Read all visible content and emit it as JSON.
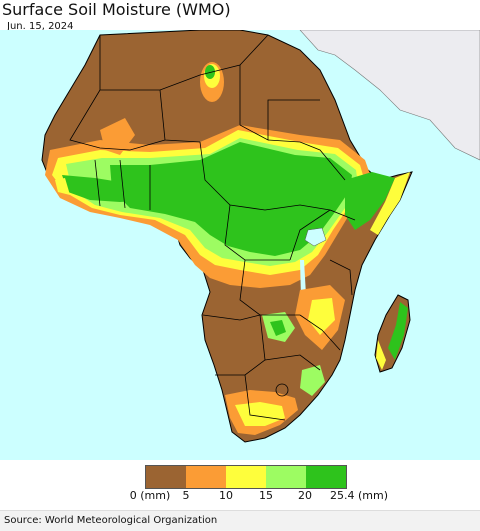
{
  "title": "Surface Soil Moisture (WMO)",
  "date": "Jun. 15, 2024",
  "source": "Source: World Meteorological Organization",
  "legend": {
    "labels": [
      "0 (mm)",
      "5",
      "10",
      "15",
      "20",
      "25.4 (mm)"
    ],
    "colors": [
      "#9b6432",
      "#fb9c35",
      "#fefe3c",
      "#9dfc62",
      "#2ec31c"
    ]
  },
  "colors": {
    "ocean": "#ccffff",
    "land_other": "#ececf0",
    "dry": "#9b6432",
    "low": "#fb9c35",
    "mid": "#fefe3c",
    "moist": "#9dfc62",
    "wet": "#2ec31c",
    "border": "#000000"
  }
}
